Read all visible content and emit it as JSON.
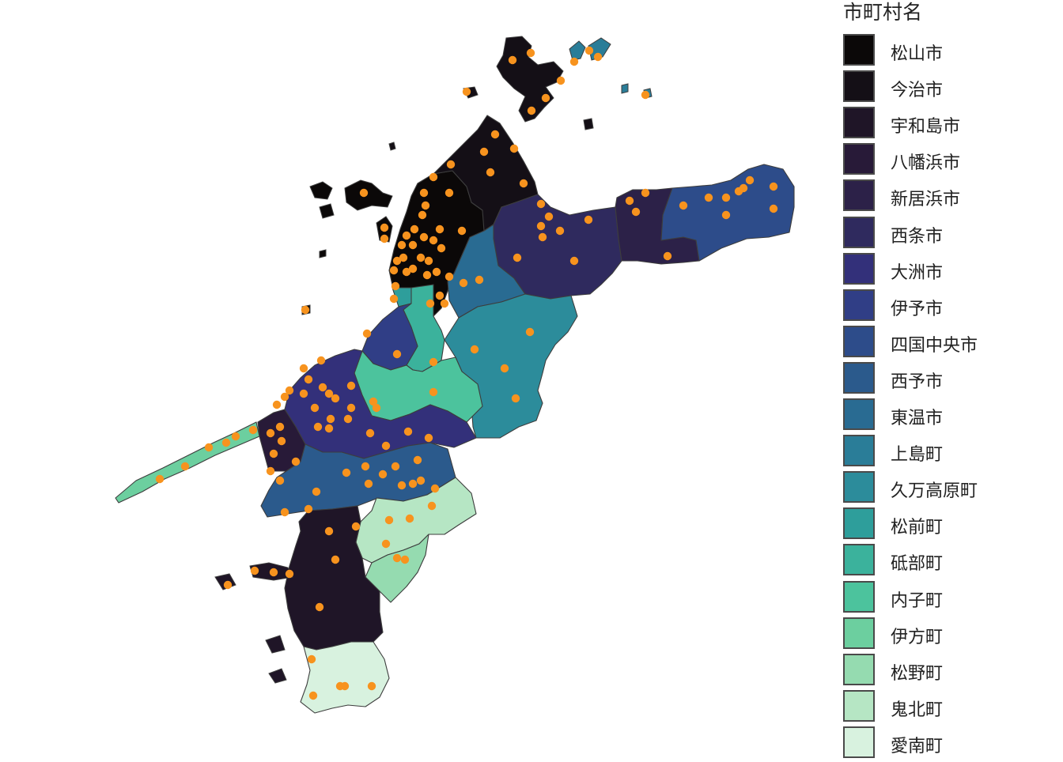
{
  "legend": {
    "title": "市町村名",
    "items": [
      {
        "id": "matsuyama",
        "label": "松山市",
        "color": "#0b0808"
      },
      {
        "id": "imabari",
        "label": "今治市",
        "color": "#140f16"
      },
      {
        "id": "uwajima",
        "label": "宇和島市",
        "color": "#1f1527"
      },
      {
        "id": "yawatahama",
        "label": "八幡浜市",
        "color": "#281a38"
      },
      {
        "id": "niihama",
        "label": "新居浜市",
        "color": "#2c2148"
      },
      {
        "id": "saijo",
        "label": "西条市",
        "color": "#2f2a5e"
      },
      {
        "id": "ozu",
        "label": "大洲市",
        "color": "#33307a"
      },
      {
        "id": "iyo",
        "label": "伊予市",
        "color": "#303e86"
      },
      {
        "id": "shikokuchuo",
        "label": "四国中央市",
        "color": "#2d4c8a"
      },
      {
        "id": "seiyo",
        "label": "西予市",
        "color": "#2b5a8c"
      },
      {
        "id": "toon",
        "label": "東温市",
        "color": "#296b92"
      },
      {
        "id": "kamijima",
        "label": "上島町",
        "color": "#2a7d98"
      },
      {
        "id": "kumakogen",
        "label": "久万高原町",
        "color": "#2c8c9b"
      },
      {
        "id": "masaki",
        "label": "松前町",
        "color": "#2e9e9b"
      },
      {
        "id": "tobe",
        "label": "砥部町",
        "color": "#3bb29c"
      },
      {
        "id": "uchiko",
        "label": "内子町",
        "color": "#4cc39d"
      },
      {
        "id": "ikata",
        "label": "伊方町",
        "color": "#6ccf9f"
      },
      {
        "id": "matsuno",
        "label": "松野町",
        "color": "#95dbb0"
      },
      {
        "id": "kihoku",
        "label": "鬼北町",
        "color": "#b6e6c4"
      },
      {
        "id": "ainan",
        "label": "愛南町",
        "color": "#d8f2df"
      }
    ]
  },
  "map": {
    "point_color": "#f7931e",
    "boundary_color": "#3d3d3d"
  }
}
